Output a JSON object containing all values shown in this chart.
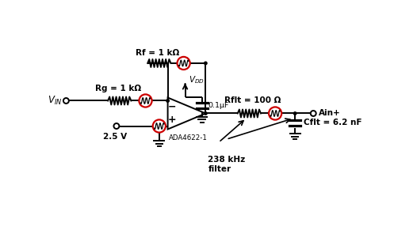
{
  "background_color": "#ffffff",
  "fig_width": 4.97,
  "fig_height": 2.91,
  "dpi": 100,
  "xlim": [
    0,
    10
  ],
  "ylim": [
    0,
    5.82
  ],
  "components": {
    "Rg_label": "Rg = 1 kΩ",
    "Rf_label": "Rf = 1 kΩ",
    "Rflt_label": "Rflt = 100 Ω",
    "Cflt_label": "Cflt = 6.2 nF",
    "bypass_label": "0.1μF",
    "opamp_label": "ADA4622-1",
    "VIN_label": "V_{IN}",
    "VDD_label": "V_{DD}",
    "V25_label": "2.5 V",
    "Ain_label": "Ain+",
    "filter_label": "238 kHz\nfilter"
  },
  "noise_circle_color": "#cc0000",
  "wire_color": "#000000",
  "lw": 1.4
}
